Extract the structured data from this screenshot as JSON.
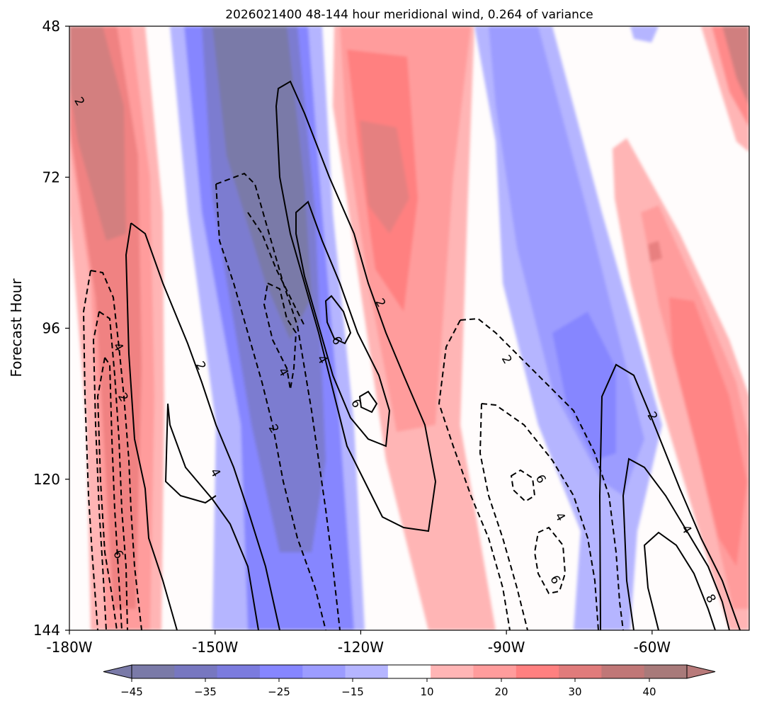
{
  "chart_data": {
    "type": "contour",
    "title": "2026021400 48-144 hour meridional wind, 0.264 of variance",
    "xlabel": "",
    "ylabel": "Forecast Hour",
    "xlim": [
      -180,
      -40
    ],
    "ylim": [
      48,
      144
    ],
    "y_inverted": true,
    "x_ticks": [
      {
        "value": -180,
        "label": "-180W"
      },
      {
        "value": -150,
        "label": "-150W"
      },
      {
        "value": -120,
        "label": "-120W"
      },
      {
        "value": -90,
        "label": "-90W"
      },
      {
        "value": -60,
        "label": "-60W"
      }
    ],
    "y_ticks": [
      {
        "value": 48,
        "label": "48"
      },
      {
        "value": 72,
        "label": "72"
      },
      {
        "value": 96,
        "label": "96"
      },
      {
        "value": 120,
        "label": "120"
      },
      {
        "value": 144,
        "label": "144"
      }
    ],
    "colorbar": {
      "orientation": "horizontal",
      "extend": "both",
      "ticks": [
        {
          "value": -45,
          "label": "−45"
        },
        {
          "value": -35,
          "label": "−35"
        },
        {
          "value": -25,
          "label": "−25"
        },
        {
          "value": -15,
          "label": "−15"
        },
        {
          "value": 10,
          "label": "10"
        },
        {
          "value": 20,
          "label": "20"
        },
        {
          "value": 30,
          "label": "30"
        },
        {
          "value": 40,
          "label": "40"
        }
      ],
      "colors": [
        "#7a7aa8",
        "#7777c0",
        "#7b7bde",
        "#8686ff",
        "#9c9cff",
        "#b5b5ff",
        "#ffffff",
        "#ffb5b5",
        "#ff9c9c",
        "#ff8080",
        "#e07b7b",
        "#c07777",
        "#a87a7a"
      ],
      "under_color": "#7a7aa8",
      "over_color": "#b87a7a"
    },
    "filled_bands": [
      {
        "name": "red band west",
        "sign": "positive",
        "lon_at_48": -176,
        "lon_at_144": -170,
        "peak_value": 40
      },
      {
        "name": "blue band central",
        "sign": "negative",
        "lon_at_48": -142,
        "lon_at_144": -132,
        "peak_value": -45
      },
      {
        "name": "red band central",
        "sign": "positive",
        "lon_at_48": -117,
        "lon_at_144": -98,
        "peak_value": 25
      },
      {
        "name": "blue band east",
        "sign": "negative",
        "lon_at_48": -92,
        "lon_at_144": -72,
        "peak_value": -20
      },
      {
        "name": "red band east",
        "sign": "positive",
        "lon_at_48": -44,
        "lon_at_144": -47,
        "peak_value": 30
      }
    ],
    "contour_lines": [
      {
        "level": 2,
        "style": "solid"
      },
      {
        "level": 4,
        "style": "solid"
      },
      {
        "level": 6,
        "style": "solid"
      },
      {
        "level": 8,
        "style": "solid"
      },
      {
        "level": -2,
        "style": "dashed"
      },
      {
        "level": -4,
        "style": "dashed"
      },
      {
        "level": -6,
        "style": "dashed"
      }
    ],
    "contour_labels": [
      {
        "text": "2",
        "lon": -178,
        "hour": 60
      },
      {
        "text": "4",
        "lon": -170,
        "hour": 99
      },
      {
        "text": "2",
        "lon": -169,
        "hour": 107
      },
      {
        "text": "6",
        "lon": -170,
        "hour": 132
      },
      {
        "text": "2",
        "lon": -153,
        "hour": 102
      },
      {
        "text": "4",
        "lon": -150,
        "hour": 119
      },
      {
        "text": "4",
        "lon": -136,
        "hour": 103
      },
      {
        "text": "2",
        "lon": -138,
        "hour": 112
      },
      {
        "text": "4",
        "lon": -128,
        "hour": 101
      },
      {
        "text": "6",
        "lon": -125,
        "hour": 98
      },
      {
        "text": "6",
        "lon": -121,
        "hour": 108
      },
      {
        "text": "2",
        "lon": -116,
        "hour": 92
      },
      {
        "text": "2",
        "lon": -90,
        "hour": 101
      },
      {
        "text": "6",
        "lon": -83,
        "hour": 120
      },
      {
        "text": "4",
        "lon": -79,
        "hour": 126
      },
      {
        "text": "6",
        "lon": -80,
        "hour": 136
      },
      {
        "text": "2",
        "lon": -60,
        "hour": 110
      },
      {
        "text": "4",
        "lon": -53,
        "hour": 128
      },
      {
        "text": "8",
        "lon": -48,
        "hour": 139
      }
    ]
  }
}
